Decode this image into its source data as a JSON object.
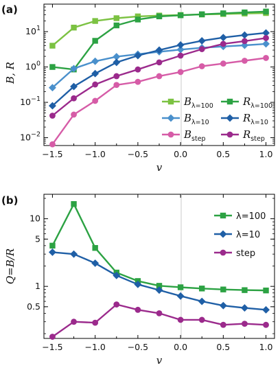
{
  "chart_data": [
    {
      "panel_label": "(a)",
      "type": "line",
      "xlabel": "v",
      "ylabel": "B,  R",
      "yscale": "log",
      "xlim": [
        -1.6,
        1.1
      ],
      "ylim": [
        0.006,
        60
      ],
      "x": [
        -1.5,
        -1.25,
        -1.0,
        -0.75,
        -0.5,
        -0.25,
        0.0,
        0.25,
        0.5,
        0.75,
        1.0
      ],
      "xticks": [
        "-1.5",
        "-1.0",
        "-0.5",
        "0.0",
        "0.5",
        "1.0"
      ],
      "yticks": [
        "10^-2",
        "10^-1",
        "10^0",
        "10^1"
      ],
      "legend_position": "lower-right",
      "series": [
        {
          "name": "B_λ=100",
          "base": "B",
          "sub": "λ=100",
          "color": "#7cc242",
          "marker": "square",
          "values": [
            4.0,
            13.0,
            20.0,
            24.0,
            27.0,
            28.5,
            29.5,
            30.5,
            31.5,
            32.5,
            33.5
          ]
        },
        {
          "name": "R_λ=100",
          "base": "R",
          "sub": "λ=100",
          "color": "#2ca243",
          "marker": "square",
          "values": [
            1.0,
            0.85,
            5.5,
            15.0,
            22.0,
            27.0,
            29.0,
            31.0,
            33.0,
            35.0,
            37.0
          ]
        },
        {
          "name": "B_λ=10",
          "base": "B",
          "sub": "λ=10",
          "color": "#4a90cc",
          "marker": "diamond",
          "values": [
            0.26,
            0.9,
            1.45,
            1.95,
            2.3,
            2.7,
            3.1,
            3.5,
            3.8,
            4.1,
            4.5
          ]
        },
        {
          "name": "R_λ=10",
          "base": "R",
          "sub": "λ=10",
          "color": "#1f5fa6",
          "marker": "diamond",
          "values": [
            0.08,
            0.28,
            0.65,
            1.35,
            2.1,
            3.0,
            4.2,
            5.5,
            6.8,
            8.0,
            9.2
          ]
        },
        {
          "name": "B_step",
          "base": "B",
          "sub": "step",
          "color": "#d65ca7",
          "marker": "circle",
          "values": [
            0.0065,
            0.045,
            0.11,
            0.31,
            0.38,
            0.55,
            0.72,
            1.05,
            1.25,
            1.5,
            1.8
          ]
        },
        {
          "name": "R_step",
          "base": "R",
          "sub": "step",
          "color": "#9b2a8c",
          "marker": "circle",
          "values": [
            0.042,
            0.13,
            0.32,
            0.55,
            0.85,
            1.35,
            2.1,
            3.2,
            4.5,
            5.4,
            6.6
          ]
        }
      ]
    },
    {
      "panel_label": "(b)",
      "type": "line",
      "xlabel": "v",
      "ylabel": "Q=B/R",
      "yscale": "log",
      "xlim": [
        -1.6,
        1.1
      ],
      "ylim": [
        0.17,
        23
      ],
      "x": [
        -1.5,
        -1.25,
        -1.0,
        -0.75,
        -0.5,
        -0.25,
        0.0,
        0.25,
        0.5,
        0.75,
        1.0
      ],
      "xticks": [
        "-1.5",
        "-1.0",
        "-0.5",
        "0.0",
        "0.5",
        "1.0"
      ],
      "yticks": [
        "0.5",
        "1",
        "5",
        "10"
      ],
      "legend_position": "upper-right",
      "series": [
        {
          "name": "λ=100",
          "color": "#2ca243",
          "marker": "square",
          "values": [
            4.0,
            16.5,
            3.7,
            1.6,
            1.2,
            1.02,
            0.97,
            0.93,
            0.9,
            0.88,
            0.87
          ]
        },
        {
          "name": "λ=10",
          "color": "#1f5fa6",
          "marker": "diamond",
          "values": [
            3.2,
            3.0,
            2.2,
            1.45,
            1.07,
            0.88,
            0.72,
            0.6,
            0.52,
            0.48,
            0.45
          ]
        },
        {
          "name": "step",
          "color": "#9b2a8c",
          "marker": "circle",
          "values": [
            0.18,
            0.3,
            0.29,
            0.54,
            0.45,
            0.4,
            0.32,
            0.32,
            0.27,
            0.28,
            0.27
          ]
        }
      ]
    }
  ]
}
